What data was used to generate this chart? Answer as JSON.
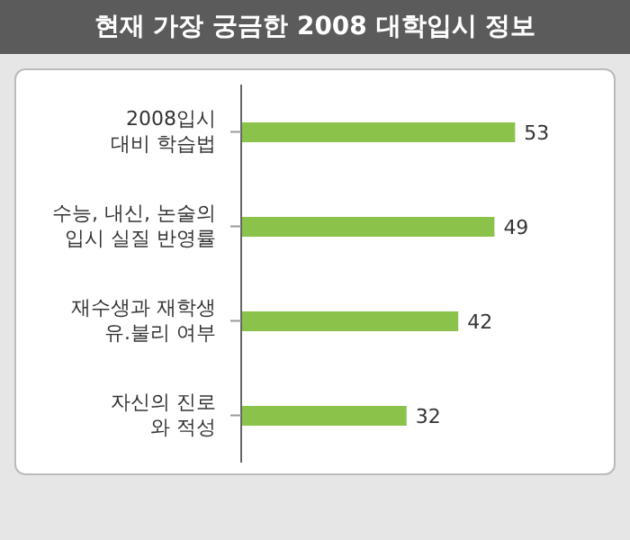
{
  "chart_data": {
    "type": "bar",
    "orientation": "horizontal",
    "title": "현재 가장 궁금한 2008 대학입시 정보",
    "categories": [
      "2008입시\n대비 학습법",
      "수능, 내신, 논술의\n입시 실질 반영률",
      "재수생과 재학생\n유.불리 여부",
      "자신의 진로\n와 적성"
    ],
    "values": [
      53,
      49,
      42,
      32
    ],
    "color": "#8bc34a",
    "data_labels": true
  }
}
